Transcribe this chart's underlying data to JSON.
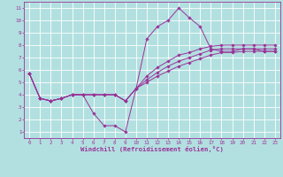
{
  "title": "",
  "xlabel": "Windchill (Refroidissement éolien,°C)",
  "ylabel": "",
  "bg_color": "#b2e0e0",
  "grid_color": "#ffffff",
  "line_color": "#993399",
  "xlim": [
    -0.5,
    23.5
  ],
  "ylim": [
    0.5,
    11.5
  ],
  "xticks": [
    0,
    1,
    2,
    3,
    4,
    5,
    6,
    7,
    8,
    9,
    10,
    11,
    12,
    13,
    14,
    15,
    16,
    17,
    18,
    19,
    20,
    21,
    22,
    23
  ],
  "yticks": [
    1,
    2,
    3,
    4,
    5,
    6,
    7,
    8,
    9,
    10,
    11
  ],
  "lines": [
    [
      5.7,
      3.7,
      3.5,
      3.7,
      4.0,
      4.0,
      2.5,
      1.5,
      1.5,
      1.0,
      4.5,
      8.5,
      9.5,
      10.0,
      11.0,
      10.2,
      9.5,
      7.7,
      7.5,
      7.5,
      7.7,
      7.7,
      7.5,
      7.5
    ],
    [
      5.7,
      3.7,
      3.5,
      3.7,
      4.0,
      4.0,
      4.0,
      4.0,
      4.0,
      3.5,
      4.5,
      5.5,
      6.2,
      6.7,
      7.2,
      7.4,
      7.7,
      7.9,
      8.0,
      8.0,
      8.0,
      8.0,
      8.0,
      8.0
    ],
    [
      5.7,
      3.7,
      3.5,
      3.7,
      4.0,
      4.0,
      4.0,
      4.0,
      4.0,
      3.5,
      4.5,
      5.2,
      5.8,
      6.3,
      6.7,
      7.0,
      7.3,
      7.6,
      7.7,
      7.7,
      7.7,
      7.7,
      7.7,
      7.7
    ],
    [
      5.7,
      3.7,
      3.5,
      3.7,
      4.0,
      4.0,
      4.0,
      4.0,
      4.0,
      3.5,
      4.5,
      5.0,
      5.5,
      5.9,
      6.3,
      6.6,
      6.9,
      7.2,
      7.4,
      7.4,
      7.5,
      7.5,
      7.5,
      7.5
    ]
  ],
  "marker": "D",
  "marker_size": 1.8,
  "line_width": 0.7,
  "tick_fontsize": 4.2,
  "xlabel_fontsize": 5.2
}
